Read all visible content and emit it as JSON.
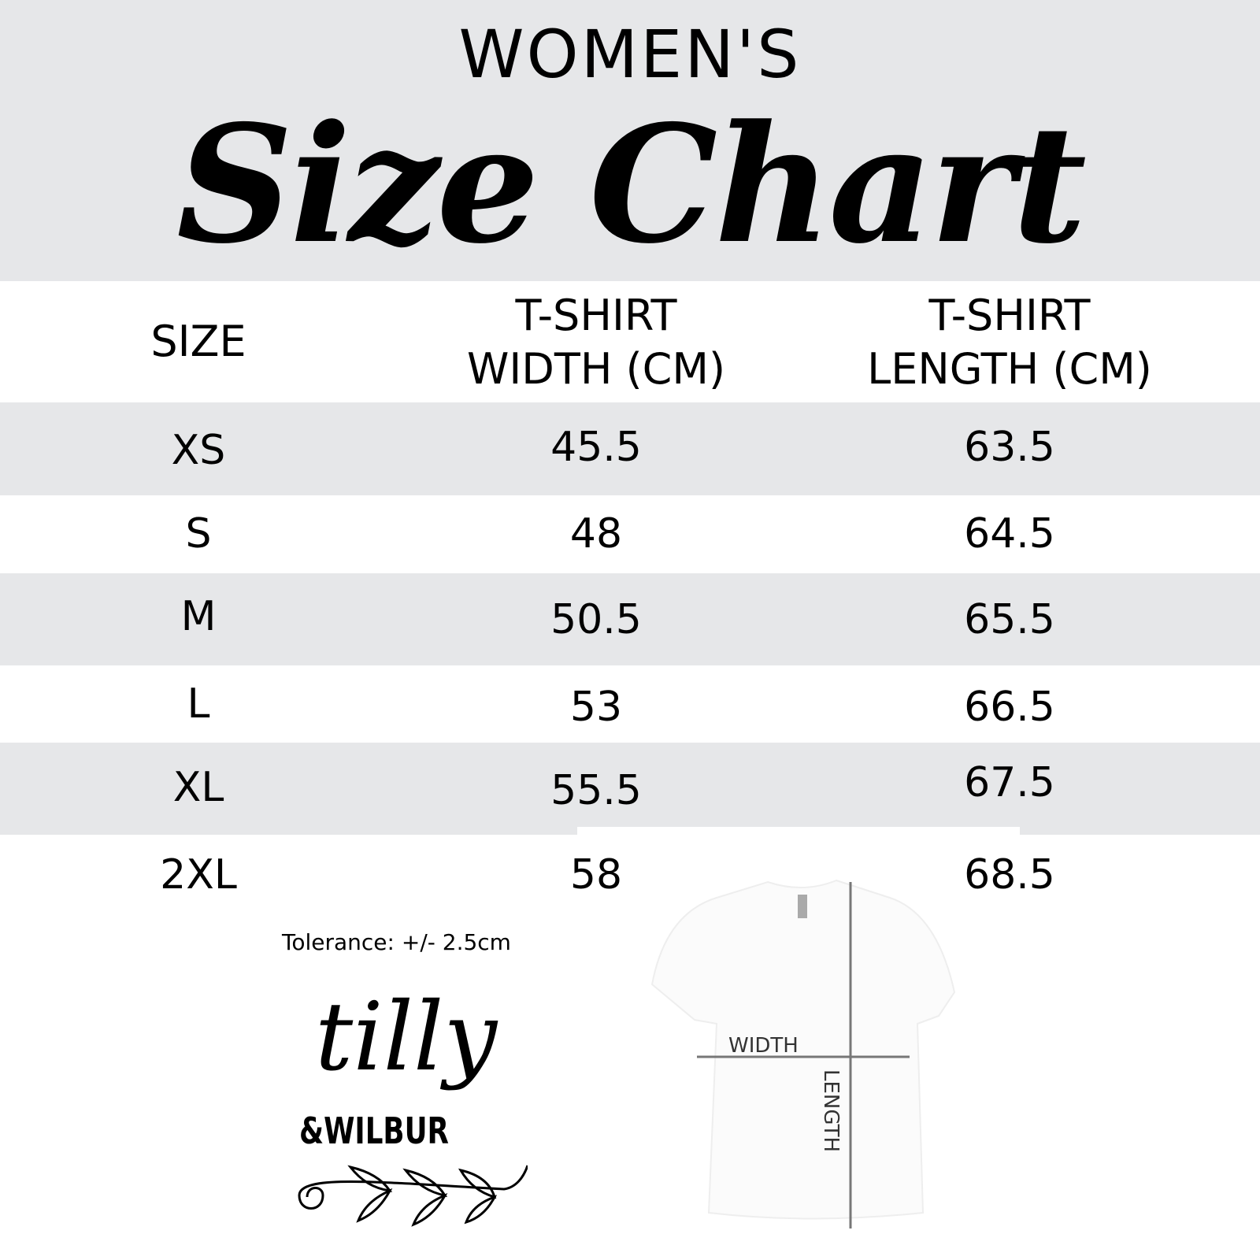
{
  "header": {
    "kicker": "WOMEN'S",
    "title": "Size Chart"
  },
  "table": {
    "columns": [
      "SIZE",
      "T-SHIRT\nWIDTH (CM)",
      "T-SHIRT\nLENGTH (CM)"
    ],
    "col_width_line1": "T-SHIRT",
    "col_width_line2": "WIDTH (CM)",
    "col_length_line1": "T-SHIRT",
    "col_length_line2": "LENGTH (CM)",
    "rows": [
      {
        "size": "XS",
        "width": "45.5",
        "length": "63.5"
      },
      {
        "size": "S",
        "width": "48",
        "length": "64.5"
      },
      {
        "size": "M",
        "width": "50.5",
        "length": "65.5"
      },
      {
        "size": "L",
        "width": "53",
        "length": "66.5"
      },
      {
        "size": "XL",
        "width": "55.5",
        "length": "67.5"
      },
      {
        "size": "2XL",
        "width": "58",
        "length": "68.5"
      }
    ],
    "row_fill": "#e6e7e9"
  },
  "tolerance": "Tolerance: +/- 2.5cm",
  "logo": {
    "line1": "tilly",
    "line2": "&WILBUR"
  },
  "diagram": {
    "width_label": "WIDTH",
    "length_label": "LENGTH"
  }
}
